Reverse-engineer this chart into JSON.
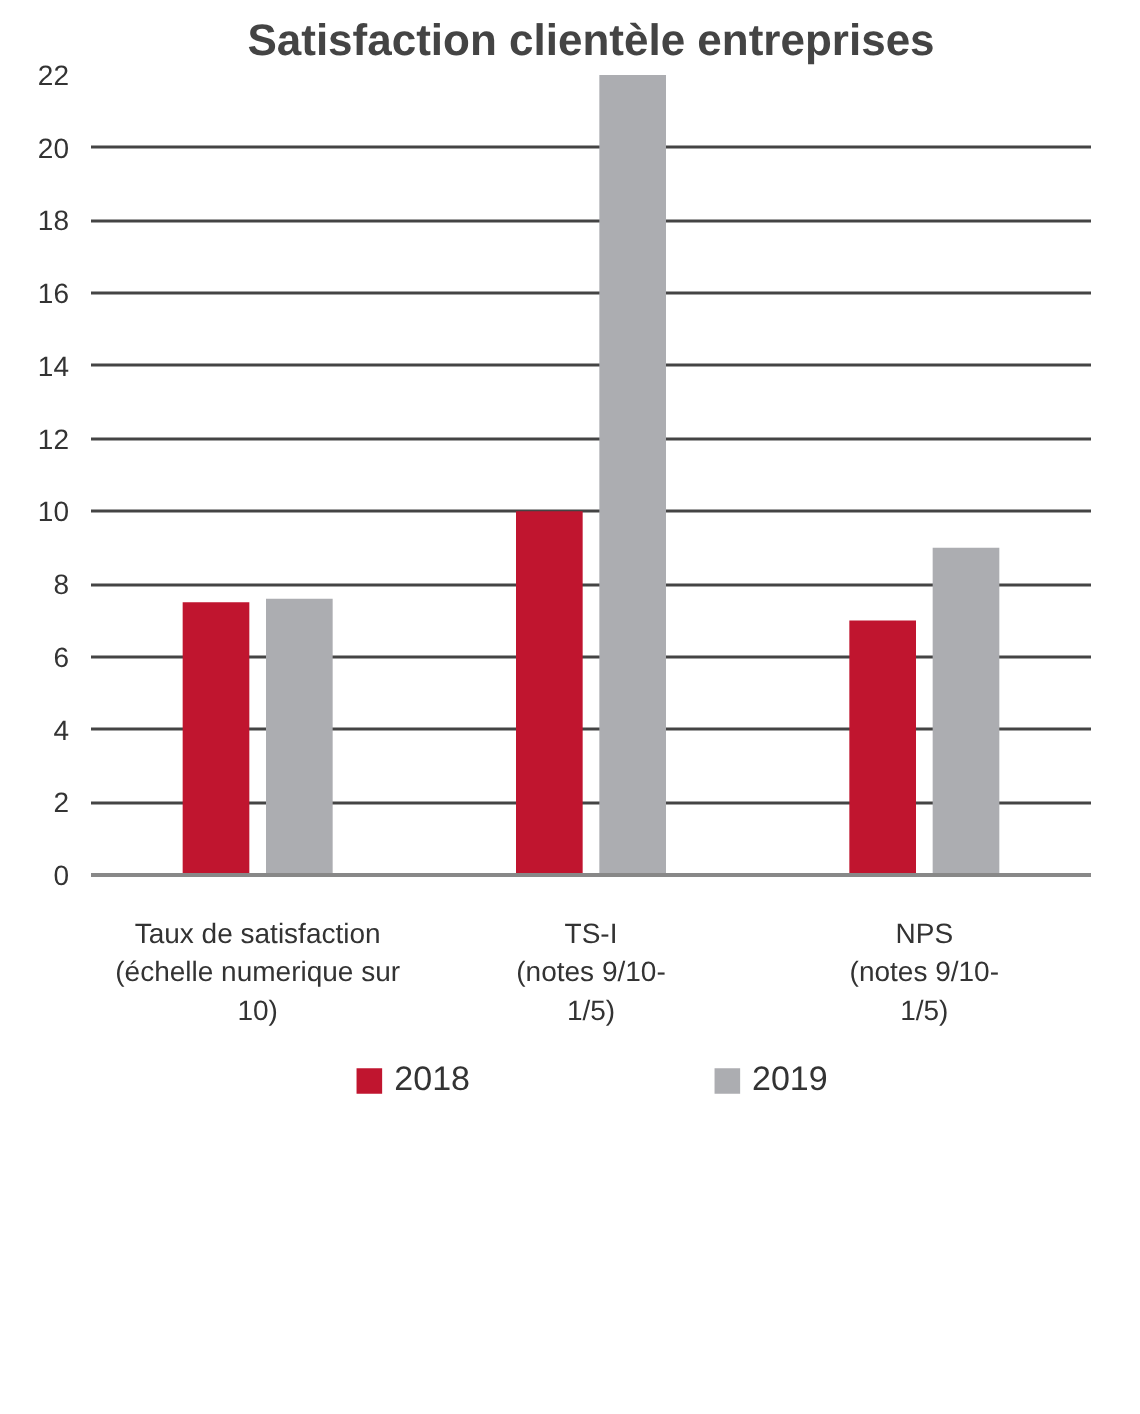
{
  "chart_data": {
    "type": "bar",
    "title": "Satisfaction clientèle entreprises",
    "categories": [
      "Taux de satisfaction\n(échelle numerique sur\n10)",
      "TS-I\n(notes 9/10-\n1/5)",
      "NPS\n(notes 9/10-\n1/5)"
    ],
    "series": [
      {
        "name": "2018",
        "color": "#c0152f",
        "values": [
          7.5,
          10,
          7
        ]
      },
      {
        "name": "2019",
        "color": "#acadb1",
        "values": [
          7.6,
          22,
          9
        ]
      }
    ],
    "ylim": [
      0,
      22
    ],
    "yticks": [
      0,
      2,
      4,
      6,
      8,
      10,
      12,
      14,
      16,
      18,
      20,
      22
    ],
    "grid": "y",
    "legend": "bottom"
  }
}
